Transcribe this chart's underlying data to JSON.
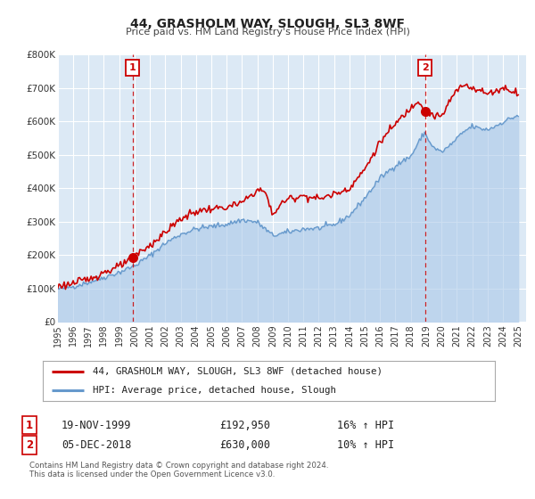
{
  "title": "44, GRASHOLM WAY, SLOUGH, SL3 8WF",
  "subtitle": "Price paid vs. HM Land Registry's House Price Index (HPI)",
  "legend_line1": "44, GRASHOLM WAY, SLOUGH, SL3 8WF (detached house)",
  "legend_line2": "HPI: Average price, detached house, Slough",
  "footer1": "Contains HM Land Registry data © Crown copyright and database right 2024.",
  "footer2": "This data is licensed under the Open Government Licence v3.0.",
  "sale1_label": "1",
  "sale1_date": "19-NOV-1999",
  "sale1_price": "£192,950",
  "sale1_hpi": "16% ↑ HPI",
  "sale2_label": "2",
  "sale2_date": "05-DEC-2018",
  "sale2_price": "£630,000",
  "sale2_hpi": "10% ↑ HPI",
  "sale1_x": 1999.88,
  "sale1_y": 192950,
  "sale2_x": 2018.92,
  "sale2_y": 630000,
  "red_color": "#cc0000",
  "blue_color": "#6699cc",
  "blue_fill_color": "#aac8e8",
  "plot_bg": "#dce9f5",
  "grid_color": "#ffffff",
  "ylim": [
    0,
    800000
  ],
  "xlim_start": 1995.0,
  "xlim_end": 2025.5,
  "yticks": [
    0,
    100000,
    200000,
    300000,
    400000,
    500000,
    600000,
    700000,
    800000
  ],
  "ytick_labels": [
    "£0",
    "£100K",
    "£200K",
    "£300K",
    "£400K",
    "£500K",
    "£600K",
    "£700K",
    "£800K"
  ],
  "xticks": [
    1995,
    1996,
    1997,
    1998,
    1999,
    2000,
    2001,
    2002,
    2003,
    2004,
    2005,
    2006,
    2007,
    2008,
    2009,
    2010,
    2011,
    2012,
    2013,
    2014,
    2015,
    2016,
    2017,
    2018,
    2019,
    2020,
    2021,
    2022,
    2023,
    2024,
    2025
  ]
}
